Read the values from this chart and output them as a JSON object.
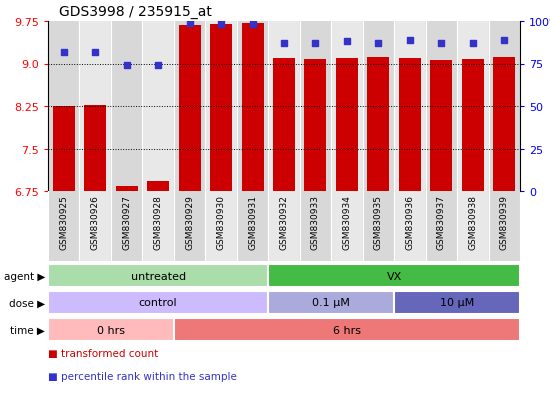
{
  "title": "GDS3998 / 235915_at",
  "samples": [
    "GSM830925",
    "GSM830926",
    "GSM830927",
    "GSM830928",
    "GSM830929",
    "GSM830930",
    "GSM830931",
    "GSM830932",
    "GSM830933",
    "GSM830934",
    "GSM830935",
    "GSM830936",
    "GSM830937",
    "GSM830938",
    "GSM830939"
  ],
  "bar_values": [
    8.25,
    8.26,
    6.84,
    6.92,
    9.68,
    9.7,
    9.72,
    9.1,
    9.08,
    9.1,
    9.12,
    9.1,
    9.06,
    9.08,
    9.12
  ],
  "dot_percentiles": [
    82,
    82,
    74,
    74,
    99,
    98,
    98,
    87,
    87,
    88,
    87,
    89,
    87,
    87,
    89
  ],
  "ylim_left": [
    6.75,
    9.75
  ],
  "ylim_right": [
    0,
    100
  ],
  "yticks_left": [
    6.75,
    7.5,
    8.25,
    9.0,
    9.75
  ],
  "yticks_right": [
    0,
    25,
    50,
    75,
    100
  ],
  "bar_color": "#cc0000",
  "dot_color": "#3333cc",
  "background_color": "#ffffff",
  "col_bg_even": "#d8d8d8",
  "col_bg_odd": "#e8e8e8",
  "agent_labels": [
    {
      "label": "untreated",
      "start": 0,
      "end": 6,
      "color": "#aaddaa"
    },
    {
      "label": "VX",
      "start": 7,
      "end": 14,
      "color": "#44bb44"
    }
  ],
  "dose_labels": [
    {
      "label": "control",
      "start": 0,
      "end": 6,
      "color": "#ccbbff"
    },
    {
      "label": "0.1 μM",
      "start": 7,
      "end": 10,
      "color": "#aaaadd"
    },
    {
      "label": "10 μM",
      "start": 11,
      "end": 14,
      "color": "#6666bb"
    }
  ],
  "time_labels": [
    {
      "label": "0 hrs",
      "start": 0,
      "end": 3,
      "color": "#ffbbbb"
    },
    {
      "label": "6 hrs",
      "start": 4,
      "end": 14,
      "color": "#ee7777"
    }
  ],
  "legend_items": [
    {
      "label": "transformed count",
      "color": "#cc0000"
    },
    {
      "label": "percentile rank within the sample",
      "color": "#3333cc"
    }
  ],
  "row_labels": [
    "agent",
    "dose",
    "time"
  ]
}
